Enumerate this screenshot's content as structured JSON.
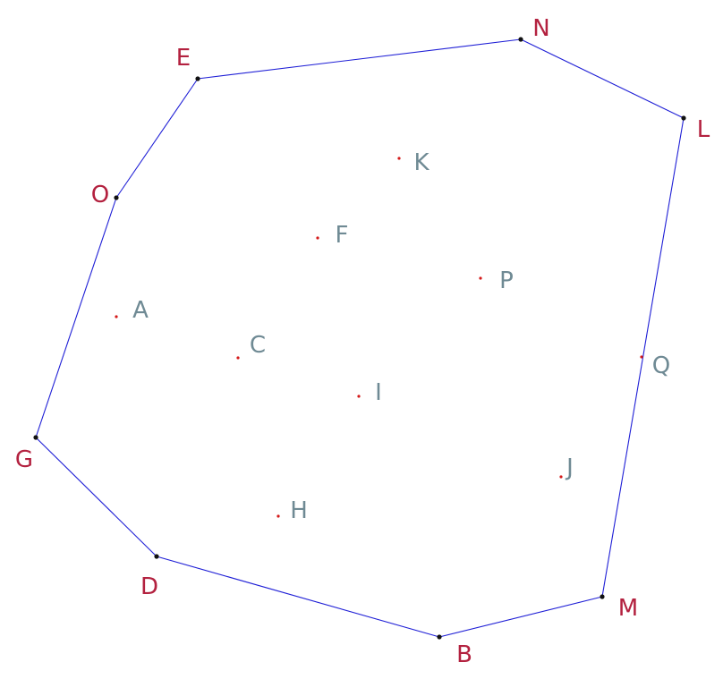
{
  "hull_color": "#1f1fd6",
  "hull_label_color": "#b3213f",
  "interior_label_color": "#6f8a94",
  "interior_point_color": "#d41a1a",
  "hull_order": [
    "E",
    "N",
    "L",
    "M",
    "B",
    "D",
    "G",
    "O"
  ],
  "hull_points": [
    {
      "id": "E",
      "label": "E"
    },
    {
      "id": "N",
      "label": "N"
    },
    {
      "id": "L",
      "label": "L"
    },
    {
      "id": "M",
      "label": "M"
    },
    {
      "id": "B",
      "label": "B"
    },
    {
      "id": "D",
      "label": "D"
    },
    {
      "id": "G",
      "label": "G"
    },
    {
      "id": "O",
      "label": "O"
    }
  ],
  "interior_points": [
    {
      "id": "K",
      "label": "K"
    },
    {
      "id": "F",
      "label": "F"
    },
    {
      "id": "P",
      "label": "P"
    },
    {
      "id": "A",
      "label": "A"
    },
    {
      "id": "C",
      "label": "C"
    },
    {
      "id": "Q",
      "label": "Q"
    },
    {
      "id": "I",
      "label": "I"
    },
    {
      "id": "J",
      "label": "J"
    },
    {
      "id": "H",
      "label": "H"
    }
  ]
}
